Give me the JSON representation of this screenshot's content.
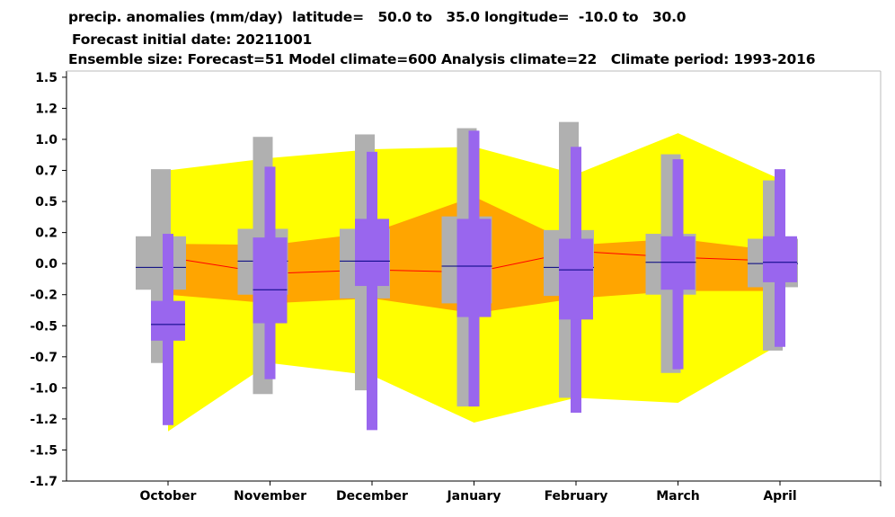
{
  "header": {
    "line1": "precip. anomalies (mm/day)  latitude=   50.0 to   35.0 longitude=  -10.0 to   30.0",
    "line2": "Forecast initial date: 20211001",
    "line3": "Ensemble size: Forecast=51 Model climate=600 Analysis climate=22   Climate period: 1993-2016"
  },
  "colors": {
    "outer_band": "#ffff00",
    "inner_band": "#ffa500",
    "climate_box": "#b0b0b0",
    "forecast_box": "#9966ee",
    "median_line": "#000080",
    "mean_line": "#ff0000"
  },
  "chart_data": {
    "type": "box",
    "ylim": [
      -1.75,
      1.55
    ],
    "y_ticks": [
      1.5,
      1.25,
      1.0,
      0.75,
      0.5,
      0.25,
      0.0,
      -0.25,
      -0.5,
      -0.75,
      -1.0,
      -1.25,
      -1.5,
      -1.75
    ],
    "y_tick_labels": [
      "1.5",
      "1.2",
      "1.0",
      "0.7",
      "0.5",
      "0.2",
      "0.0",
      "-0.2",
      "-0.5",
      "-0.7",
      "-1.0",
      "-1.2",
      "-1.5",
      "-1.7"
    ],
    "categories": [
      "October",
      "November",
      "December",
      "January",
      "February",
      "March",
      "April"
    ],
    "bands": {
      "outer_upper": [
        0.75,
        0.85,
        0.92,
        0.94,
        0.72,
        1.05,
        0.68
      ],
      "outer_lower": [
        -1.35,
        -0.8,
        -0.9,
        -1.28,
        -1.08,
        -1.12,
        -0.65
      ],
      "inner_upper": [
        0.16,
        0.15,
        0.25,
        0.54,
        0.15,
        0.2,
        0.1
      ],
      "inner_lower": [
        -0.25,
        -0.32,
        -0.28,
        -0.4,
        -0.28,
        -0.22,
        -0.22
      ]
    },
    "mean_line": [
      0.05,
      -0.08,
      -0.05,
      -0.07,
      0.1,
      0.05,
      0.02
    ],
    "climate_boxes": [
      {
        "min": -0.8,
        "q1": -0.21,
        "median": -0.03,
        "q3": 0.22,
        "max": 0.76
      },
      {
        "min": -1.05,
        "q1": -0.25,
        "median": 0.02,
        "q3": 0.28,
        "max": 1.02
      },
      {
        "min": -1.02,
        "q1": -0.28,
        "median": 0.02,
        "q3": 0.28,
        "max": 1.04
      },
      {
        "min": -1.15,
        "q1": -0.32,
        "median": -0.02,
        "q3": 0.38,
        "max": 1.09
      },
      {
        "min": -1.08,
        "q1": -0.26,
        "median": -0.03,
        "q3": 0.27,
        "max": 1.14
      },
      {
        "min": -0.88,
        "q1": -0.25,
        "median": 0.01,
        "q3": 0.24,
        "max": 0.88
      },
      {
        "min": -0.7,
        "q1": -0.19,
        "median": 0.0,
        "q3": 0.2,
        "max": 0.67
      }
    ],
    "forecast_boxes": [
      {
        "min": -1.3,
        "q1": -0.62,
        "median": -0.49,
        "q3": -0.3,
        "max": 0.24
      },
      {
        "min": -0.93,
        "q1": -0.48,
        "median": -0.21,
        "q3": 0.21,
        "max": 0.78
      },
      {
        "min": -1.34,
        "q1": -0.18,
        "median": 0.02,
        "q3": 0.36,
        "max": 0.9
      },
      {
        "min": -1.15,
        "q1": -0.43,
        "median": -0.02,
        "q3": 0.36,
        "max": 1.07
      },
      {
        "min": -1.2,
        "q1": -0.45,
        "median": -0.05,
        "q3": 0.2,
        "max": 0.94
      },
      {
        "min": -0.85,
        "q1": -0.21,
        "median": 0.01,
        "q3": 0.22,
        "max": 0.84
      },
      {
        "min": -0.67,
        "q1": -0.15,
        "median": 0.01,
        "q3": 0.22,
        "max": 0.76
      }
    ]
  }
}
